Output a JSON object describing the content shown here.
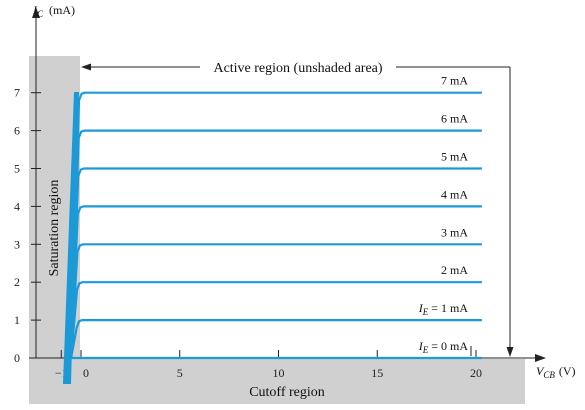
{
  "chart_data": {
    "type": "line",
    "title": "",
    "x_axis": {
      "label_main": "V",
      "label_sub": "CB",
      "label_unit": "(V)",
      "range": [
        -1.5,
        20.5
      ],
      "ticks": [
        {
          "value": -1,
          "label": "−1"
        },
        {
          "value": 0,
          "label": "0"
        },
        {
          "value": 5,
          "label": "5"
        },
        {
          "value": 10,
          "label": "10"
        },
        {
          "value": 15,
          "label": "15"
        },
        {
          "value": 20,
          "label": "20"
        }
      ]
    },
    "y_axis": {
      "label_main": "I",
      "label_sub": "C",
      "label_unit": "(mA)",
      "range": [
        0,
        7.5
      ],
      "ticks": [
        {
          "value": 0,
          "label": "0"
        },
        {
          "value": 1,
          "label": "1"
        },
        {
          "value": 2,
          "label": "2"
        },
        {
          "value": 3,
          "label": "3"
        },
        {
          "value": 4,
          "label": "4"
        },
        {
          "value": 5,
          "label": "5"
        },
        {
          "value": 6,
          "label": "6"
        },
        {
          "value": 7,
          "label": "7"
        }
      ]
    },
    "series": [
      {
        "ie": 0,
        "prefix": "I",
        "sub": "E",
        "text": " = 0 mA",
        "points": [
          [
            -0.5,
            0
          ],
          [
            20.3,
            0
          ]
        ]
      },
      {
        "ie": 1,
        "prefix": "I",
        "sub": "E",
        "text": " = 1 mA",
        "points": [
          [
            -0.5,
            0
          ],
          [
            -0.22,
            0.8
          ],
          [
            -0.1,
            0.97
          ],
          [
            0.05,
            1.0
          ],
          [
            20.3,
            1.0
          ]
        ]
      },
      {
        "ie": 2,
        "prefix": "",
        "sub": "",
        "text": "2 mA",
        "points": [
          [
            -0.5,
            0
          ],
          [
            -0.2,
            1.8
          ],
          [
            -0.08,
            1.97
          ],
          [
            0.08,
            2.0
          ],
          [
            20.3,
            2.0
          ]
        ]
      },
      {
        "ie": 3,
        "prefix": "",
        "sub": "",
        "text": "3 mA",
        "points": [
          [
            -0.5,
            0
          ],
          [
            -0.18,
            2.8
          ],
          [
            -0.05,
            2.97
          ],
          [
            0.1,
            3.0
          ],
          [
            20.3,
            3.0
          ]
        ]
      },
      {
        "ie": 4,
        "prefix": "",
        "sub": "",
        "text": "4 mA",
        "points": [
          [
            -0.5,
            0
          ],
          [
            -0.16,
            3.8
          ],
          [
            -0.03,
            3.97
          ],
          [
            0.12,
            4.0
          ],
          [
            20.3,
            4.0
          ]
        ]
      },
      {
        "ie": 5,
        "prefix": "",
        "sub": "",
        "text": "5 mA",
        "points": [
          [
            -0.5,
            0
          ],
          [
            -0.14,
            4.8
          ],
          [
            -0.01,
            4.97
          ],
          [
            0.14,
            5.0
          ],
          [
            20.3,
            5.0
          ]
        ]
      },
      {
        "ie": 6,
        "prefix": "",
        "sub": "",
        "text": "6 mA",
        "points": [
          [
            -0.5,
            0
          ],
          [
            -0.12,
            5.8
          ],
          [
            0.01,
            5.97
          ],
          [
            0.16,
            6.0
          ],
          [
            20.3,
            6.0
          ]
        ]
      },
      {
        "ie": 7,
        "prefix": "",
        "sub": "",
        "text": "7 mA",
        "points": [
          [
            -0.5,
            0
          ],
          [
            -0.1,
            6.8
          ],
          [
            0.03,
            6.97
          ],
          [
            0.18,
            7.0
          ],
          [
            20.3,
            7.0
          ]
        ]
      }
    ],
    "regions": {
      "active": "Active region (unshaded area)",
      "saturation": "Saturation region",
      "cutoff": "Cutoff region"
    },
    "colors": {
      "curve": "#1c9ad8",
      "shade": "#d0d0d0",
      "axis": "#222222"
    },
    "grid": false,
    "legend": "none"
  }
}
